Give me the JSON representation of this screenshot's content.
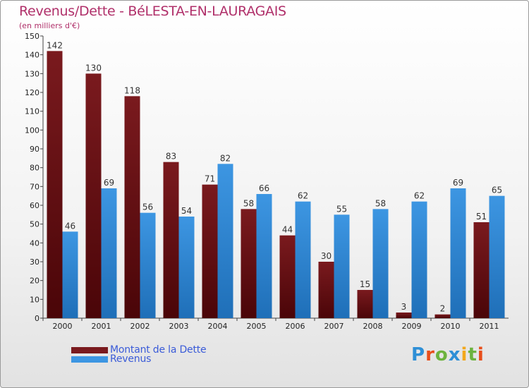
{
  "chart_data": {
    "type": "bar",
    "title": "Revenus/Dette - BéLESTA-EN-LAURAGAIS",
    "subtitle": "(en milliers d'€)",
    "categories": [
      "2000",
      "2001",
      "2002",
      "2003",
      "2004",
      "2005",
      "2006",
      "2007",
      "2008",
      "2009",
      "2010",
      "2011"
    ],
    "series": [
      {
        "name": "Montant de la Dette",
        "color": "#7a1a1e",
        "values": [
          142,
          130,
          118,
          83,
          71,
          58,
          44,
          30,
          15,
          3,
          2,
          51
        ]
      },
      {
        "name": "Revenus",
        "color": "#3d96e2",
        "values": [
          46,
          69,
          56,
          54,
          82,
          66,
          62,
          55,
          58,
          62,
          69,
          65
        ]
      }
    ],
    "ylim": [
      0,
      150
    ],
    "yticks": [
      0,
      10,
      20,
      30,
      40,
      50,
      60,
      70,
      80,
      90,
      100,
      110,
      120,
      130,
      140,
      150
    ],
    "grid": false,
    "legend_position": "bottom-left",
    "data_labels": true
  },
  "logo": {
    "letters": [
      "P",
      "r",
      "o",
      "x",
      "i",
      "t",
      "i"
    ],
    "colors": [
      "#2e8fd6",
      "#e84e1b",
      "#6cb33f",
      "#2e8fd6",
      "#f2a81d",
      "#6cb33f",
      "#e84e1b"
    ]
  }
}
